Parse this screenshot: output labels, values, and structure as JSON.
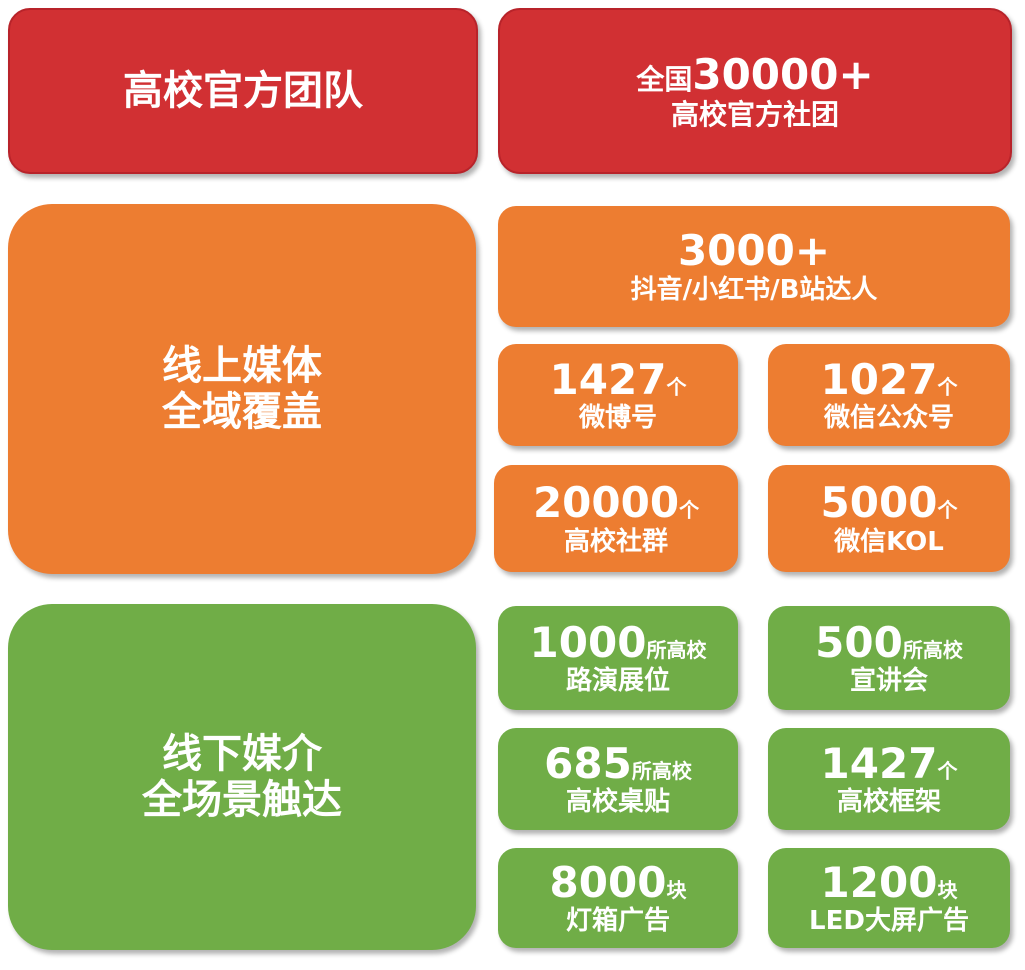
{
  "colors": {
    "red": "#d13033",
    "orange": "#ed7d31",
    "green": "#70ad47"
  },
  "team": {
    "title": "高校官方团队",
    "line1_prefix": "全国",
    "line1_num": "30000+",
    "line2": "高校官方社团"
  },
  "online": {
    "title_line1": "线上媒体",
    "title_line2": "全域覆盖",
    "top": {
      "num": "3000+",
      "label": "抖音/小红书/B站达人"
    },
    "items": [
      {
        "num": "1427",
        "unit": "个",
        "label": "微博号"
      },
      {
        "num": "1027",
        "unit": "个",
        "label": "微信公众号"
      },
      {
        "num": "20000",
        "unit": "个",
        "label": "高校社群"
      },
      {
        "num": "5000",
        "unit": "个",
        "label": "微信KOL"
      }
    ]
  },
  "offline": {
    "title_line1": "线下媒介",
    "title_line2": "全场景触达",
    "items": [
      {
        "num": "1000",
        "unit": "所高校",
        "label": "路演展位"
      },
      {
        "num": "500",
        "unit": "所高校",
        "label": "宣讲会"
      },
      {
        "num": "685",
        "unit": "所高校",
        "label": "高校桌贴"
      },
      {
        "num": "1427",
        "unit": "个",
        "label": "高校框架"
      },
      {
        "num": "8000",
        "unit": "块",
        "label": "灯箱广告"
      },
      {
        "num": "1200",
        "unit": "块",
        "label": "LED大屏广告"
      }
    ]
  }
}
